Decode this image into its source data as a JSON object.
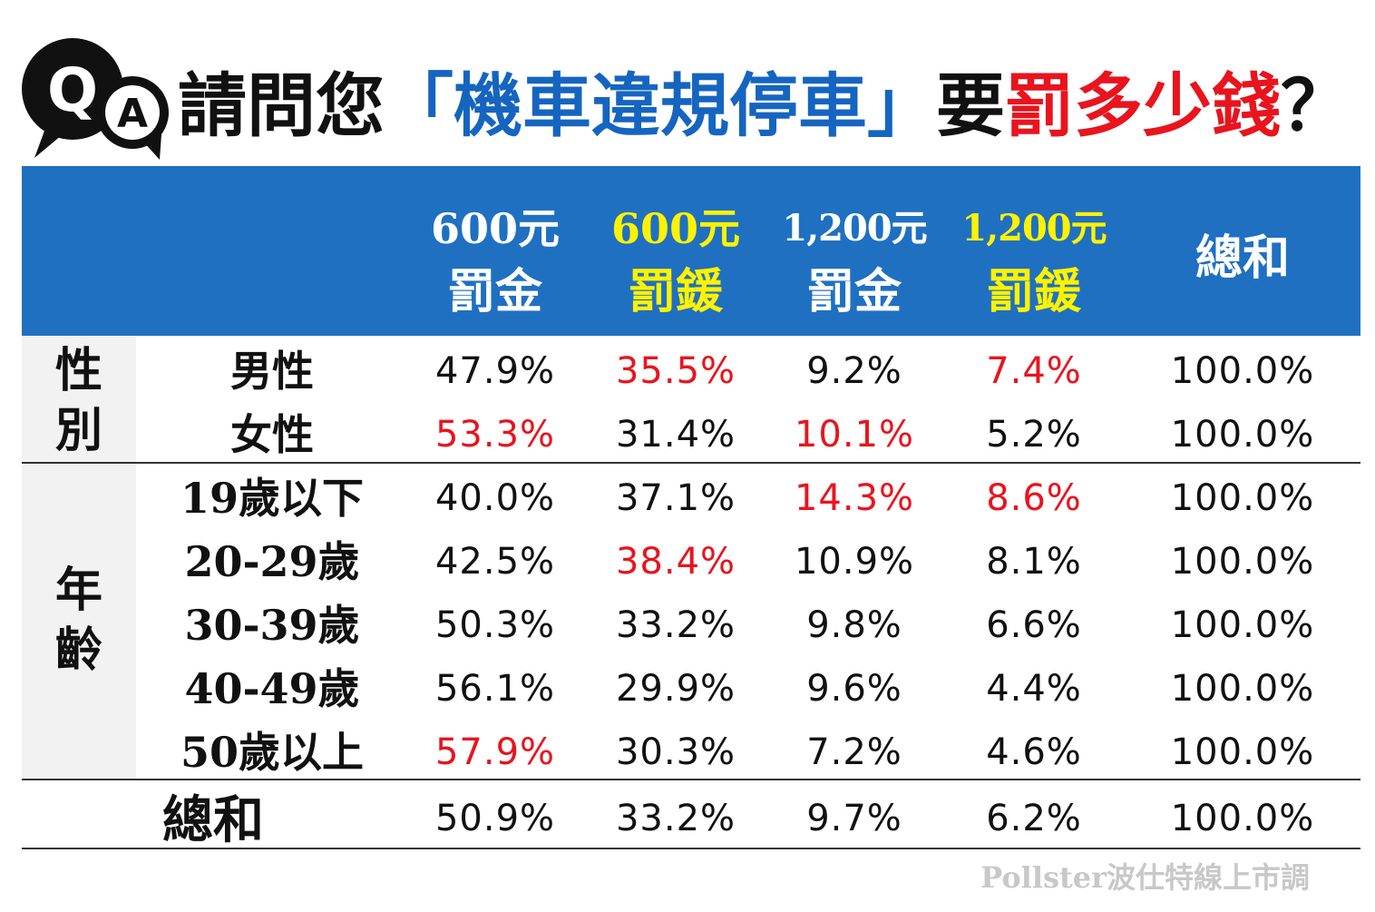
{
  "title": {
    "prefix": "請問您",
    "highlight_blue": "「機車違規停車」",
    "middle": "要",
    "highlight_red": "罰多少錢",
    "suffix": "？"
  },
  "logo": {
    "q": "Q",
    "a": "A"
  },
  "colors": {
    "header_bg": "#1f70c1",
    "highlight_red": "#e8141e",
    "header_yellow": "#fff200",
    "title_blue": "#1565c0"
  },
  "chart_data": {
    "type": "table",
    "columns": [
      {
        "amount": "600元",
        "kind": "罰金"
      },
      {
        "amount": "600元",
        "kind": "罰鍰"
      },
      {
        "amount": "1,200元",
        "kind": "罰金"
      },
      {
        "amount": "1,200元",
        "kind": "罰鍰"
      },
      {
        "amount": "",
        "kind": "總和"
      }
    ],
    "groups": [
      {
        "label": "性別",
        "rows": [
          {
            "label": "男性",
            "values": [
              "47.9%",
              "35.5%",
              "9.2%",
              "7.4%",
              "100.0%"
            ],
            "highlight": [
              1,
              3
            ]
          },
          {
            "label": "女性",
            "values": [
              "53.3%",
              "31.4%",
              "10.1%",
              "5.2%",
              "100.0%"
            ],
            "highlight": [
              0,
              2
            ]
          }
        ]
      },
      {
        "label": "年齡",
        "rows": [
          {
            "label": "19歲以下",
            "values": [
              "40.0%",
              "37.1%",
              "14.3%",
              "8.6%",
              "100.0%"
            ],
            "highlight": [
              2,
              3
            ]
          },
          {
            "label": "20-29歲",
            "values": [
              "42.5%",
              "38.4%",
              "10.9%",
              "8.1%",
              "100.0%"
            ],
            "highlight": [
              1
            ]
          },
          {
            "label": "30-39歲",
            "values": [
              "50.3%",
              "33.2%",
              "9.8%",
              "6.6%",
              "100.0%"
            ],
            "highlight": []
          },
          {
            "label": "40-49歲",
            "values": [
              "56.1%",
              "29.9%",
              "9.6%",
              "4.4%",
              "100.0%"
            ],
            "highlight": []
          },
          {
            "label": "50歲以上",
            "values": [
              "57.9%",
              "30.3%",
              "7.2%",
              "4.6%",
              "100.0%"
            ],
            "highlight": [
              0
            ]
          }
        ]
      }
    ],
    "total": {
      "label": "總和",
      "values": [
        "50.9%",
        "33.2%",
        "9.7%",
        "6.2%",
        "100.0%"
      ]
    }
  },
  "watermark": "Pollster波仕特線上市調"
}
